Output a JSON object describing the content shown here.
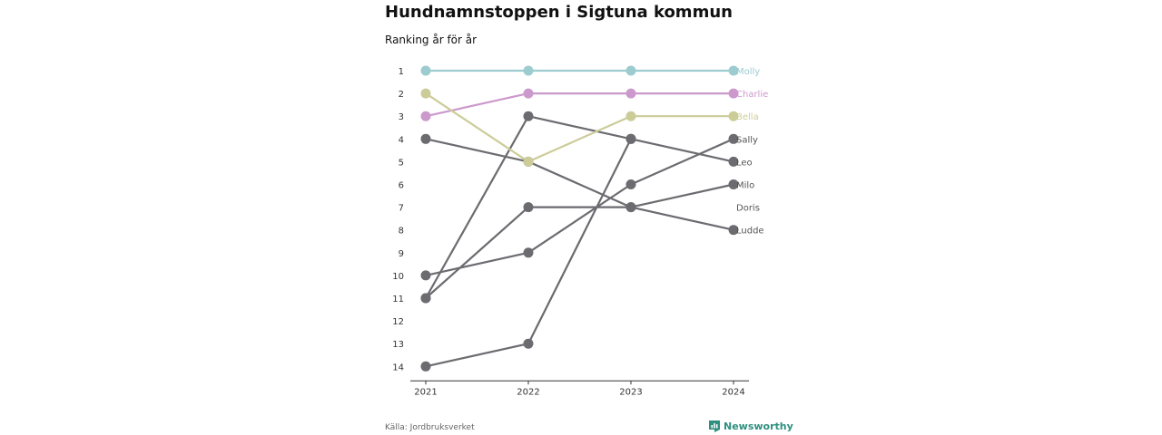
{
  "chart_data": {
    "type": "line",
    "title": "Hundnamnstoppen i Sigtuna kommun",
    "subtitle": "Ranking år för år",
    "x": [
      "2021",
      "2022",
      "2023",
      "2024"
    ],
    "yticks": [
      1,
      2,
      3,
      4,
      5,
      6,
      7,
      8,
      9,
      10,
      11,
      12,
      13,
      14
    ],
    "ylim": [
      1,
      14
    ],
    "y_reversed": true,
    "grid": false,
    "series": [
      {
        "name": "Molly",
        "values": [
          1,
          1,
          1,
          1
        ],
        "color": "#9ccccf"
      },
      {
        "name": "Charlie",
        "values": [
          3,
          2,
          2,
          2
        ],
        "color": "#cc99cc"
      },
      {
        "name": "Bella",
        "values": [
          2,
          5,
          3,
          3
        ],
        "color": "#cccc99"
      },
      {
        "name": "Sally",
        "values": [
          10,
          9,
          6,
          4
        ],
        "color": "#6b6b70"
      },
      {
        "name": "Leo",
        "values": [
          11,
          3,
          4,
          5
        ],
        "color": "#6b6b70"
      },
      {
        "name": "Milo",
        "values": [
          4,
          5,
          7,
          6
        ],
        "color": "#6b6b70"
      },
      {
        "name": "Doris",
        "values": [
          14,
          13,
          4,
          null
        ],
        "color": "#6b6b70"
      },
      {
        "name": "Ludde",
        "values": [
          11,
          7,
          7,
          8
        ],
        "color": "#6b6b70"
      }
    ]
  },
  "footer": {
    "source": "Källa: Jordbruksverket",
    "brand": "Newsworthy"
  }
}
